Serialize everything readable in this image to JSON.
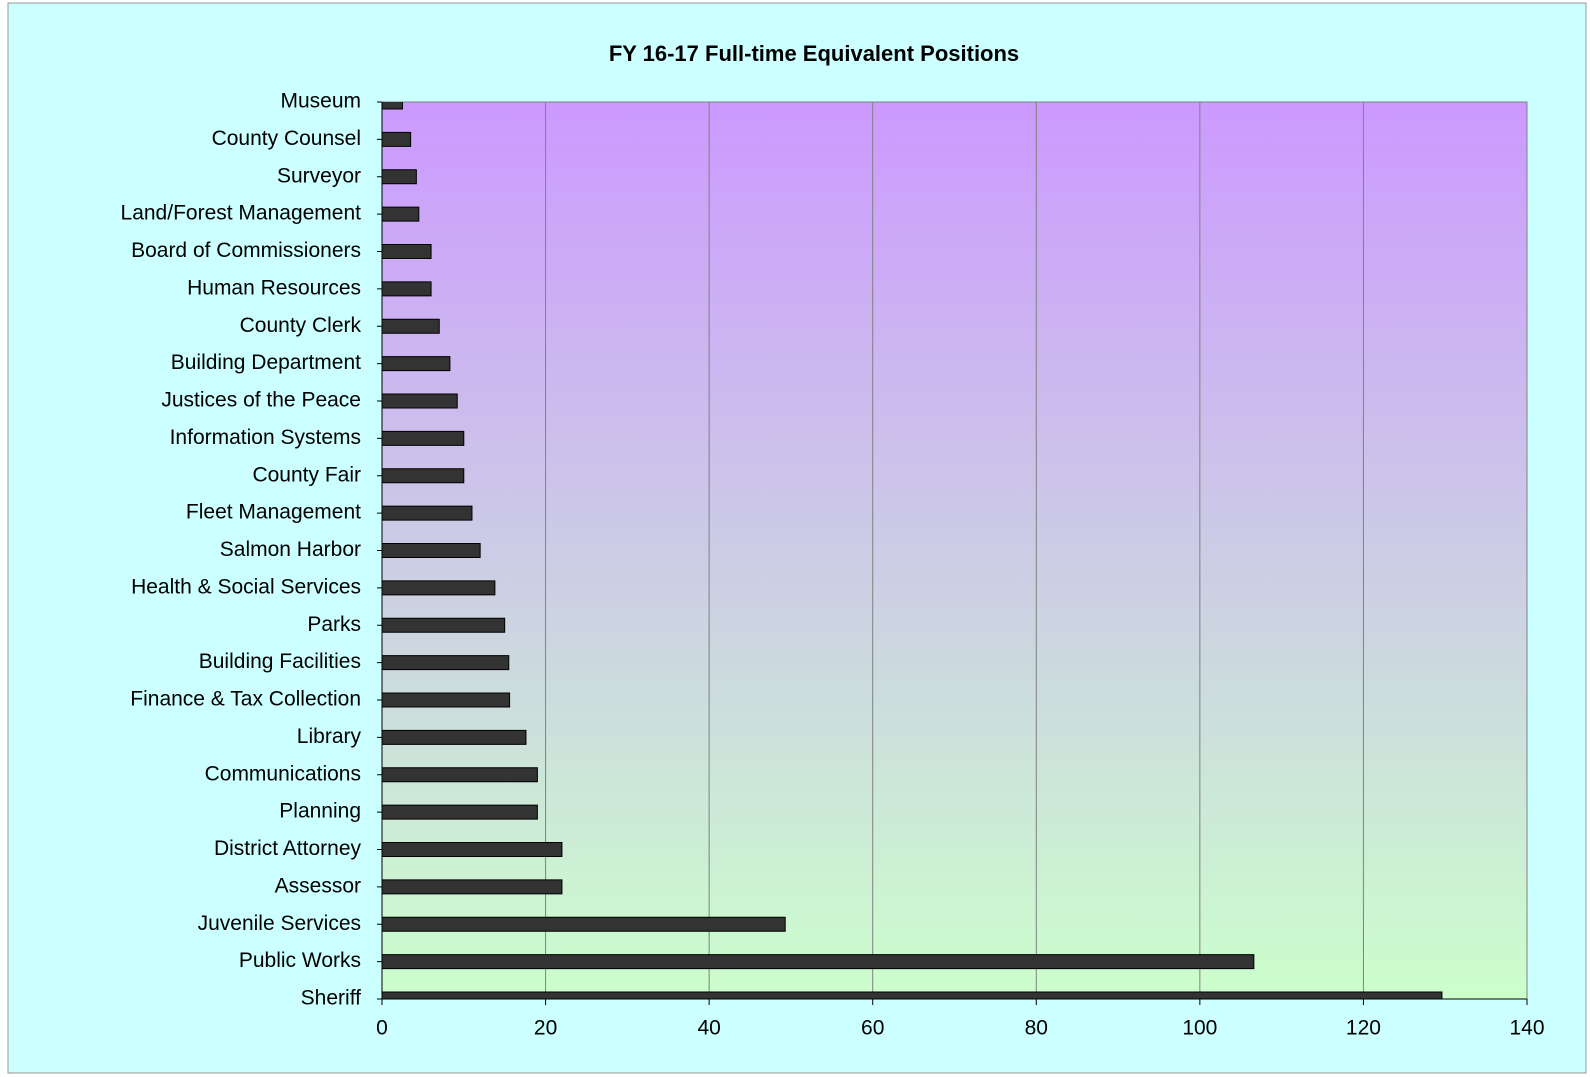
{
  "chart_data": {
    "type": "barh",
    "title": "FY 16-17 Full-time Equivalent Positions",
    "categories": [
      "Museum",
      "County Counsel",
      "Surveyor",
      "Land/Forest Management",
      "Board of Commissioners",
      "Human Resources",
      "County Clerk",
      "Building Department",
      "Justices of the Peace",
      "Information Systems",
      "County Fair",
      "Fleet Management",
      "Salmon Harbor",
      "Health & Social Services",
      "Parks",
      "Building Facilities",
      "Finance & Tax Collection",
      "Library",
      "Communications",
      "Planning",
      "District Attorney",
      "Assessor",
      "Juvenile Services",
      "Public Works",
      "Sheriff"
    ],
    "values": [
      2.5,
      3.5,
      4.2,
      4.5,
      6,
      6,
      7,
      8.3,
      9.2,
      10,
      10,
      11,
      12,
      13.8,
      15,
      15.5,
      15.6,
      17.6,
      19,
      19,
      22,
      22,
      49.3,
      106.6,
      129.6
    ],
    "color": "#333333",
    "xlim": [
      0,
      140
    ],
    "xticks": [
      0,
      20,
      40,
      60,
      80,
      100,
      120,
      140
    ],
    "grid": true
  }
}
